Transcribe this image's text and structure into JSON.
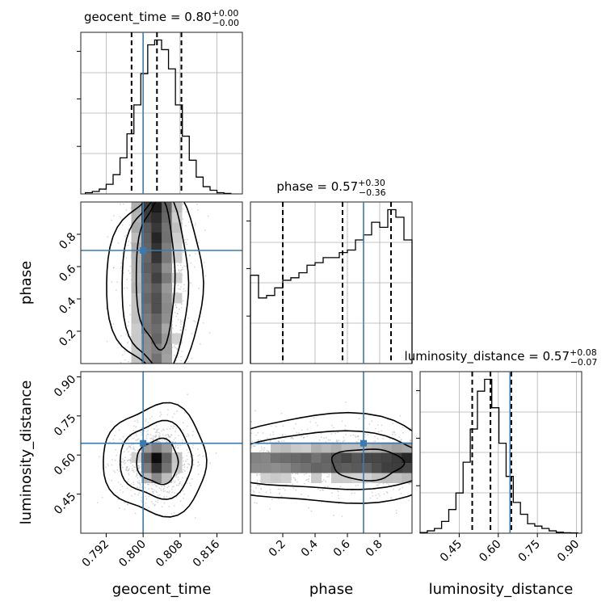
{
  "chart_data": {
    "type": "corner",
    "parameters": [
      "geocent_time",
      "phase",
      "luminosity_distance"
    ],
    "axis_labels": {
      "geocent_time": "geocent_time",
      "phase": "phase",
      "luminosity_distance": "luminosity_distance"
    },
    "ranges": {
      "geocent_time": [
        0.7865,
        0.8215
      ],
      "phase": [
        0.0,
        1.0
      ],
      "luminosity_distance": [
        0.3,
        0.92
      ]
    },
    "ticks": {
      "geocent_time": [
        0.792,
        0.8,
        0.808,
        0.816
      ],
      "phase": [
        0.2,
        0.4,
        0.6,
        0.8
      ],
      "luminosity_distance": [
        0.45,
        0.6,
        0.75,
        0.9
      ]
    },
    "tick_labels": {
      "geocent_time": [
        "0.792",
        "0.800",
        "0.808",
        "0.816"
      ],
      "phase": [
        "0.2",
        "0.4",
        "0.6",
        "0.8"
      ],
      "luminosity_distance": [
        "0.45",
        "0.60",
        "0.75",
        "0.90"
      ]
    },
    "truths": {
      "geocent_time": 0.8,
      "phase": 0.7,
      "luminosity_distance": 0.645
    },
    "titles": {
      "geocent_time": {
        "prefix": "geocent_time = ",
        "median": "0.80",
        "plus": "+0.00",
        "minus": "−0.00"
      },
      "phase": {
        "prefix": "phase = ",
        "median": "0.57",
        "plus": "+0.30",
        "minus": "−0.36"
      },
      "luminosity_distance": {
        "prefix": "luminosity_distance = ",
        "median": "0.57",
        "plus": "+0.08",
        "minus": "−0.07"
      }
    },
    "quantiles": {
      "geocent_time": [
        0.7975,
        0.803,
        0.8083
      ],
      "phase": [
        0.2,
        0.57,
        0.87
      ],
      "luminosity_distance": [
        0.5,
        0.57,
        0.65
      ]
    },
    "histograms": {
      "geocent_time": {
        "edges": [
          0.7875,
          0.789,
          0.7905,
          0.792,
          0.7935,
          0.795,
          0.7965,
          0.798,
          0.7995,
          0.801,
          0.8025,
          0.804,
          0.8055,
          0.807,
          0.8085,
          0.81,
          0.8115,
          0.813,
          0.8145,
          0.816,
          0.8175,
          0.819
        ],
        "counts": [
          0.5,
          1,
          2,
          4,
          8,
          15,
          25,
          37,
          50,
          62,
          64,
          60,
          52,
          37,
          24,
          14,
          7,
          3,
          1.5,
          0.5,
          0.2
        ]
      },
      "phase": {
        "edges": [
          0,
          0.05,
          0.1,
          0.15,
          0.2,
          0.25,
          0.3,
          0.35,
          0.4,
          0.45,
          0.5,
          0.55,
          0.6,
          0.65,
          0.7,
          0.75,
          0.8,
          0.85,
          0.9,
          0.95,
          1.0
        ],
        "counts": [
          35,
          26,
          27,
          30,
          33,
          34,
          36,
          39,
          40,
          42,
          42,
          44,
          45,
          49,
          51,
          56,
          54,
          61,
          58,
          49
        ]
      },
      "luminosity_distance": {
        "edges": [
          0.3,
          0.3275,
          0.355,
          0.3825,
          0.41,
          0.4375,
          0.465,
          0.4925,
          0.52,
          0.5475,
          0.575,
          0.6025,
          0.63,
          0.6575,
          0.685,
          0.7125,
          0.74,
          0.7675,
          0.795,
          0.8225,
          0.85,
          0.8775,
          0.905
        ],
        "counts": [
          0.3,
          1,
          2,
          5,
          10,
          17,
          30,
          44,
          60,
          65,
          53,
          38,
          24,
          13,
          8,
          4,
          3,
          2,
          1,
          0.4,
          0.2,
          0.1
        ]
      }
    }
  }
}
